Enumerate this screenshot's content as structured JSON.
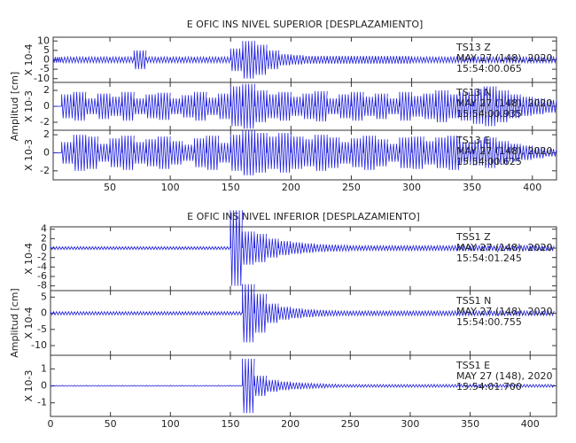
{
  "chart_data": [
    {
      "type": "seismogram",
      "title": "E OFIC INS NIVEL SUPERIOR [DESPLAZAMIENTO]",
      "ylabel": "Amplitud [cm]",
      "x": [
        0,
        10,
        20,
        30,
        40,
        50,
        60,
        70,
        80,
        90,
        100,
        110,
        120,
        130,
        140,
        150,
        160,
        170,
        180,
        190,
        200,
        210,
        220,
        230,
        240,
        250,
        260,
        270,
        280,
        290,
        300,
        310,
        320,
        330,
        340,
        350,
        360,
        370,
        380,
        390,
        400,
        410
      ],
      "xlim": [
        3,
        420
      ],
      "xticks": [
        50,
        100,
        150,
        200,
        250,
        300,
        350,
        400
      ],
      "panels": [
        {
          "station": "TS13   Z",
          "date": "MAY 27 (148), 2020",
          "time": "15:54:00.065",
          "scale_label": "X 10-4",
          "ylim": [
            -12,
            12
          ],
          "yticks": [
            10,
            5,
            0,
            -5,
            -10
          ],
          "color": "#2222dd",
          "values": [
            1.5,
            1.5,
            1.5,
            1.5,
            1.5,
            1.5,
            1.5,
            5,
            1.5,
            1.5,
            1.5,
            1.5,
            1.5,
            1.5,
            1.5,
            6,
            10,
            8,
            5,
            3,
            2.5,
            2,
            2,
            2,
            2,
            2,
            2,
            2,
            2,
            2,
            1.5,
            1.5,
            1.5,
            1.5,
            1.5,
            1.5,
            1.5,
            1.5,
            1.5,
            1.5,
            1.5,
            1.5
          ]
        },
        {
          "station": "TS13   N",
          "date": "MAY 27 (148), 2020",
          "time": "15:54:00.935",
          "scale_label": "X 10-3",
          "ylim": [
            -3,
            3
          ],
          "yticks": [
            2,
            0,
            -2
          ],
          "color": "#2222dd",
          "values": [
            0,
            1.5,
            1.8,
            1,
            1.6,
            1.2,
            1.8,
            1,
            1.5,
            1.7,
            1,
            1.4,
            1.8,
            1.1,
            1.6,
            2.5,
            2.8,
            2,
            1.5,
            1.8,
            1.2,
            1.6,
            1.9,
            1,
            1.5,
            1.8,
            1.2,
            1.6,
            1,
            1.8,
            1.3,
            1.6,
            2,
            1.5,
            1.8,
            2.2,
            2.5,
            2,
            1.5,
            1.2,
            1,
            0.8
          ]
        },
        {
          "station": "TS13   E",
          "date": "MAY 27 (148), 2020",
          "time": "15:54:00.625",
          "scale_label": "X 10-3",
          "ylim": [
            -3,
            2.5
          ],
          "yticks": [
            2,
            0,
            -2
          ],
          "color": "#2222dd",
          "values": [
            0,
            1.2,
            2,
            1.8,
            1,
            1.6,
            1.9,
            1.2,
            1.5,
            1.8,
            1.3,
            0.9,
            1.6,
            1.9,
            1.1,
            2,
            2.5,
            2.2,
            1.8,
            2.2,
            1.8,
            1.5,
            2,
            1.7,
            1.2,
            1.6,
            1.9,
            1.5,
            1,
            1.7,
            1.8,
            1.3,
            1.7,
            1.9,
            1.2,
            1.4,
            1.7,
            1.3,
            1,
            0.8,
            0.6,
            0.4
          ]
        }
      ]
    },
    {
      "type": "seismogram",
      "title": "E OFIC INS NIVEL INFERIOR [DESPLAZAMIENTO]",
      "ylabel": "Amplitud [cm]",
      "x": [
        0,
        10,
        20,
        30,
        40,
        50,
        60,
        70,
        80,
        90,
        100,
        110,
        120,
        130,
        140,
        150,
        160,
        170,
        180,
        190,
        200,
        210,
        220,
        230,
        240,
        250,
        260,
        270,
        280,
        290,
        300,
        310,
        320,
        330,
        340,
        350,
        360,
        370,
        380,
        390,
        400,
        410
      ],
      "xlim": [
        0,
        422
      ],
      "xticks": [
        0,
        50,
        100,
        150,
        200,
        250,
        300,
        350,
        400
      ],
      "panels": [
        {
          "station": "TSS1   Z",
          "date": "MAY 27 (148), 2020",
          "time": "15:54:01.245",
          "scale_label": "X 10-4",
          "ylim": [
            -9,
            4.5
          ],
          "yticks": [
            4,
            2,
            0,
            -2,
            -4,
            -6,
            -8
          ],
          "color": "#2222dd",
          "values": [
            0.3,
            0.3,
            0.3,
            0.3,
            0.3,
            0.3,
            0.3,
            0.3,
            0.3,
            0.3,
            0.3,
            0.3,
            0.3,
            0.3,
            0.3,
            8,
            3.5,
            3,
            2,
            1.5,
            1.2,
            1,
            0.8,
            0.7,
            0.6,
            0.5,
            0.5,
            0.5,
            0.5,
            0.5,
            0.5,
            0.5,
            0.5,
            0.5,
            0.5,
            0.5,
            0.5,
            0.5,
            0.5,
            0.5,
            0.5,
            0.5
          ]
        },
        {
          "station": "TSS1   N",
          "date": "MAY 27 (148), 2020",
          "time": "15:54:00.755",
          "scale_label": "X 10-4",
          "ylim": [
            -13,
            7
          ],
          "yticks": [
            5,
            0,
            -5,
            -10
          ],
          "color": "#2222dd",
          "values": [
            0.5,
            0.5,
            0.5,
            0.5,
            0.5,
            0.5,
            0.5,
            0.5,
            0.5,
            0.5,
            0.5,
            0.5,
            0.5,
            0.5,
            0.5,
            0.5,
            9,
            6,
            3,
            2,
            1.5,
            1.2,
            1,
            0.8,
            0.7,
            0.7,
            0.7,
            0.7,
            0.7,
            0.7,
            0.7,
            0.7,
            0.7,
            0.7,
            0.7,
            0.7,
            0.7,
            0.7,
            0.7,
            0.7,
            0.7,
            0.7
          ]
        },
        {
          "station": "TSS1   E",
          "date": "MAY 27 (148), 2020",
          "time": "15:54:01.700",
          "scale_label": "X 10-3",
          "ylim": [
            -1.8,
            1.8
          ],
          "yticks": [
            1,
            0,
            -1
          ],
          "color": "#2222dd",
          "values": [
            0.03,
            0.03,
            0.03,
            0.03,
            0.03,
            0.03,
            0.03,
            0.03,
            0.03,
            0.03,
            0.03,
            0.03,
            0.03,
            0.03,
            0.03,
            0.03,
            1.6,
            0.6,
            0.35,
            0.25,
            0.2,
            0.15,
            0.12,
            0.1,
            0.08,
            0.08,
            0.08,
            0.08,
            0.08,
            0.08,
            0.08,
            0.08,
            0.08,
            0.08,
            0.08,
            0.08,
            0.08,
            0.08,
            0.08,
            0.08,
            0.08,
            0.08
          ]
        }
      ]
    }
  ]
}
